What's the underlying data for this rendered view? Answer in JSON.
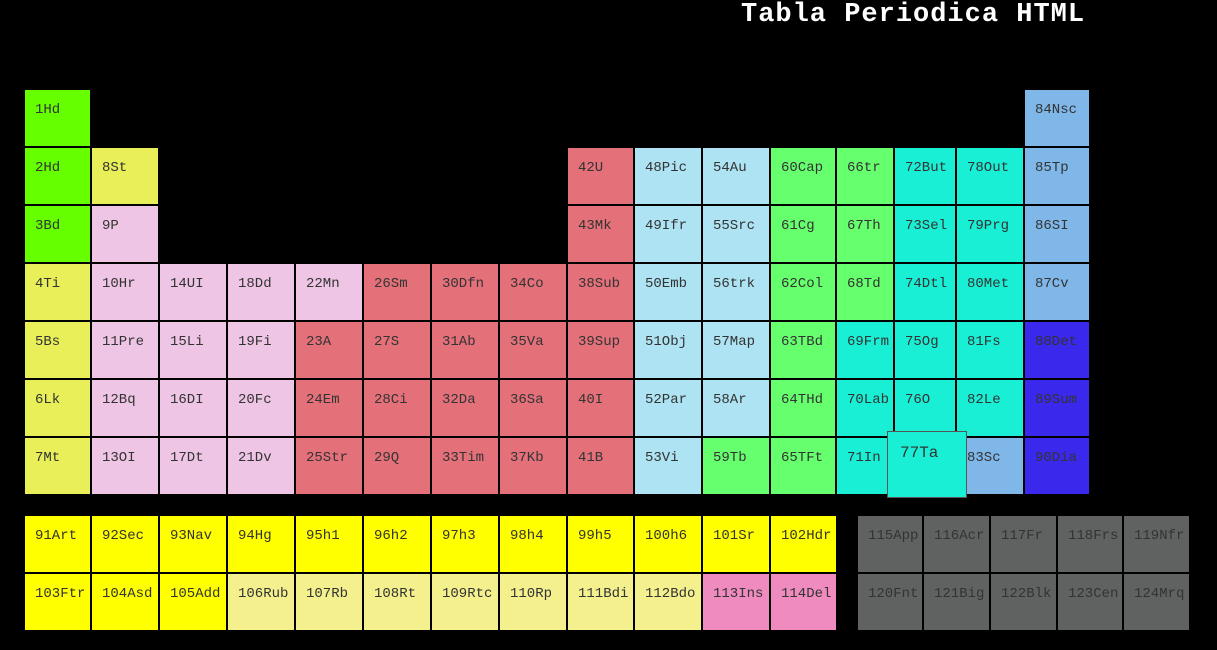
{
  "title": "Tabla Periodica HTML",
  "colors": {
    "green": "#66ff00",
    "yellowgreen": "#e8ef58",
    "pink": "#eec5e5",
    "red": "#e4707a",
    "lightblue": "#ade3f2",
    "green2": "#66ff6d",
    "cyan": "#19efd5",
    "skyblue": "#7eb7e8",
    "blue": "#3a28ec",
    "yellow": "#ffff00",
    "paleyellow": "#f4f08e",
    "hotpink": "#f08bbf",
    "gray": "#5f6261"
  },
  "elements": [
    {
      "label": "1Hd",
      "color": "green"
    },
    {
      "label": "2Hd",
      "color": "green"
    },
    {
      "label": "3Bd",
      "color": "green"
    },
    {
      "label": "4Ti",
      "color": "yellowgreen"
    },
    {
      "label": "5Bs",
      "color": "yellowgreen"
    },
    {
      "label": "6Lk",
      "color": "yellowgreen"
    },
    {
      "label": "7Mt",
      "color": "yellowgreen"
    },
    {
      "label": "8St",
      "color": "yellowgreen"
    },
    {
      "label": "9P",
      "color": "pink"
    },
    {
      "label": "10Hr",
      "color": "pink"
    },
    {
      "label": "11Pre",
      "color": "pink"
    },
    {
      "label": "12Bq",
      "color": "pink"
    },
    {
      "label": "13OI",
      "color": "pink"
    },
    {
      "label": "14UI",
      "color": "pink"
    },
    {
      "label": "15Li",
      "color": "pink"
    },
    {
      "label": "16DI",
      "color": "pink"
    },
    {
      "label": "17Dt",
      "color": "pink"
    },
    {
      "label": "18Dd",
      "color": "pink"
    },
    {
      "label": "19Fi",
      "color": "pink"
    },
    {
      "label": "20Fc",
      "color": "pink"
    },
    {
      "label": "21Dv",
      "color": "pink"
    },
    {
      "label": "22Mn",
      "color": "pink"
    },
    {
      "label": "23A",
      "color": "red"
    },
    {
      "label": "24Em",
      "color": "red"
    },
    {
      "label": "25Str",
      "color": "red"
    },
    {
      "label": "26Sm",
      "color": "red"
    },
    {
      "label": "27S",
      "color": "red"
    },
    {
      "label": "28Ci",
      "color": "red"
    },
    {
      "label": "29Q",
      "color": "red"
    },
    {
      "label": "30Dfn",
      "color": "red"
    },
    {
      "label": "31Ab",
      "color": "red"
    },
    {
      "label": "32Da",
      "color": "red"
    },
    {
      "label": "33Tim",
      "color": "red"
    },
    {
      "label": "34Co",
      "color": "red"
    },
    {
      "label": "35Va",
      "color": "red"
    },
    {
      "label": "36Sa",
      "color": "red"
    },
    {
      "label": "37Kb",
      "color": "red"
    },
    {
      "label": "38Sub",
      "color": "red"
    },
    {
      "label": "39Sup",
      "color": "red"
    },
    {
      "label": "40I",
      "color": "red"
    },
    {
      "label": "41B",
      "color": "red"
    },
    {
      "label": "42U",
      "color": "red"
    },
    {
      "label": "43Mk",
      "color": "red"
    },
    {
      "label": "48Pic",
      "color": "lightblue"
    },
    {
      "label": "49Ifr",
      "color": "lightblue"
    },
    {
      "label": "50Emb",
      "color": "lightblue"
    },
    {
      "label": "51Obj",
      "color": "lightblue"
    },
    {
      "label": "52Par",
      "color": "lightblue"
    },
    {
      "label": "53Vi",
      "color": "lightblue"
    },
    {
      "label": "54Au",
      "color": "lightblue"
    },
    {
      "label": "55Src",
      "color": "lightblue"
    },
    {
      "label": "56trk",
      "color": "lightblue"
    },
    {
      "label": "57Map",
      "color": "lightblue"
    },
    {
      "label": "58Ar",
      "color": "lightblue"
    },
    {
      "label": "59Tb",
      "color": "green2"
    },
    {
      "label": "60Cap",
      "color": "green2"
    },
    {
      "label": "61Cg",
      "color": "green2"
    },
    {
      "label": "62Col",
      "color": "green2"
    },
    {
      "label": "63TBd",
      "color": "green2"
    },
    {
      "label": "64THd",
      "color": "green2"
    },
    {
      "label": "65TFt",
      "color": "green2"
    },
    {
      "label": "66tr",
      "color": "green2"
    },
    {
      "label": "67Th",
      "color": "green2"
    },
    {
      "label": "68Td",
      "color": "green2"
    },
    {
      "label": "69Frm",
      "color": "cyan"
    },
    {
      "label": "70Lab",
      "color": "cyan"
    },
    {
      "label": "71In",
      "color": "cyan"
    },
    {
      "label": "72But",
      "color": "cyan"
    },
    {
      "label": "73Sel",
      "color": "cyan"
    },
    {
      "label": "74Dtl",
      "color": "cyan"
    },
    {
      "label": "75Og",
      "color": "cyan"
    },
    {
      "label": "76O",
      "color": "cyan"
    },
    {
      "label": "77Ta",
      "color": "cyan"
    },
    {
      "label": "78Out",
      "color": "cyan"
    },
    {
      "label": "79Prg",
      "color": "cyan"
    },
    {
      "label": "80Met",
      "color": "cyan"
    },
    {
      "label": "81Fs",
      "color": "cyan"
    },
    {
      "label": "82Le",
      "color": "cyan"
    },
    {
      "label": "83Sc",
      "color": "skyblue"
    },
    {
      "label": "84Nsc",
      "color": "skyblue"
    },
    {
      "label": "85Tp",
      "color": "skyblue"
    },
    {
      "label": "86SI",
      "color": "skyblue"
    },
    {
      "label": "87Cv",
      "color": "skyblue"
    },
    {
      "label": "88Det",
      "color": "blue"
    },
    {
      "label": "89Sum",
      "color": "blue"
    },
    {
      "label": "90Dia",
      "color": "blue"
    },
    {
      "label": "91Art",
      "color": "yellow"
    },
    {
      "label": "92Sec",
      "color": "yellow"
    },
    {
      "label": "93Nav",
      "color": "yellow"
    },
    {
      "label": "94Hg",
      "color": "yellow"
    },
    {
      "label": "95h1",
      "color": "yellow"
    },
    {
      "label": "96h2",
      "color": "yellow"
    },
    {
      "label": "97h3",
      "color": "yellow"
    },
    {
      "label": "98h4",
      "color": "yellow"
    },
    {
      "label": "99h5",
      "color": "yellow"
    },
    {
      "label": "100h6",
      "color": "yellow"
    },
    {
      "label": "101Sr",
      "color": "yellow"
    },
    {
      "label": "102Hdr",
      "color": "yellow"
    },
    {
      "label": "103Ftr",
      "color": "yellow"
    },
    {
      "label": "104Asd",
      "color": "yellow"
    },
    {
      "label": "105Add",
      "color": "yellow"
    },
    {
      "label": "106Rub",
      "color": "paleyellow"
    },
    {
      "label": "107Rb",
      "color": "paleyellow"
    },
    {
      "label": "108Rt",
      "color": "paleyellow"
    },
    {
      "label": "109Rtc",
      "color": "paleyellow"
    },
    {
      "label": "110Rp",
      "color": "paleyellow"
    },
    {
      "label": "111Bdi",
      "color": "paleyellow"
    },
    {
      "label": "112Bdo",
      "color": "paleyellow"
    },
    {
      "label": "113Ins",
      "color": "hotpink"
    },
    {
      "label": "114Del",
      "color": "hotpink"
    },
    {
      "label": "115App",
      "color": "gray"
    },
    {
      "label": "116Acr",
      "color": "gray"
    },
    {
      "label": "117Fr",
      "color": "gray"
    },
    {
      "label": "118Frs",
      "color": "gray"
    },
    {
      "label": "119Nfr",
      "color": "gray"
    },
    {
      "label": "120Fnt",
      "color": "gray"
    },
    {
      "label": "121Big",
      "color": "gray"
    },
    {
      "label": "122Blk",
      "color": "gray"
    },
    {
      "label": "123Cen",
      "color": "gray"
    },
    {
      "label": "124Mrq",
      "color": "gray"
    }
  ]
}
